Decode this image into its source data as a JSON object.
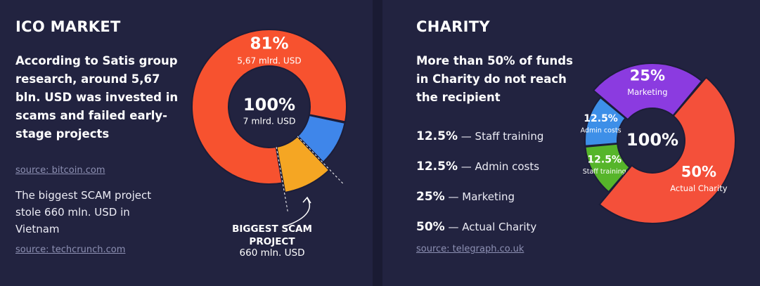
{
  "chart_data": [
    {
      "type": "donut",
      "title": "ICO MARKET",
      "subtitle": "According to Satis group research, around 5,67 bln. USD was invested in scams and failed early-stage projects",
      "source": "source: bitcoin.com",
      "note": "The biggest SCAM project stole 660 mln. USD in Vietnam",
      "note_source": "source: techcrunch.com",
      "center_label": "100%",
      "center_sublabel": "7 mlrd. USD",
      "categories": [
        "5,67 mlrd. USD",
        null,
        "BIGGEST SCAM PROJECT"
      ],
      "values": [
        81,
        9.6,
        9.4
      ],
      "value_labels": [
        "81%",
        null,
        null
      ],
      "segment_sublabels": [
        null,
        null,
        "660 mln. USD"
      ],
      "colors": [
        "#f7522f",
        "#3f86ea",
        "#f5a623"
      ]
    },
    {
      "type": "donut",
      "title": "CHARITY",
      "subtitle": "More than 50% of funds in Charity do not reach the recipient",
      "source": "source: telegraph.co.uk",
      "center_label": "100%",
      "legend_separator": "—",
      "categories": [
        "Staff training",
        "Admin costs",
        "Marketing",
        "Actual Charity"
      ],
      "values": [
        12.5,
        12.5,
        25,
        50
      ],
      "value_labels": [
        "12.5%",
        "12.5%",
        "25%",
        "50%"
      ],
      "colors": [
        "#56b52a",
        "#3d8fe8",
        "#8b3be0",
        "#f4503a"
      ]
    }
  ]
}
